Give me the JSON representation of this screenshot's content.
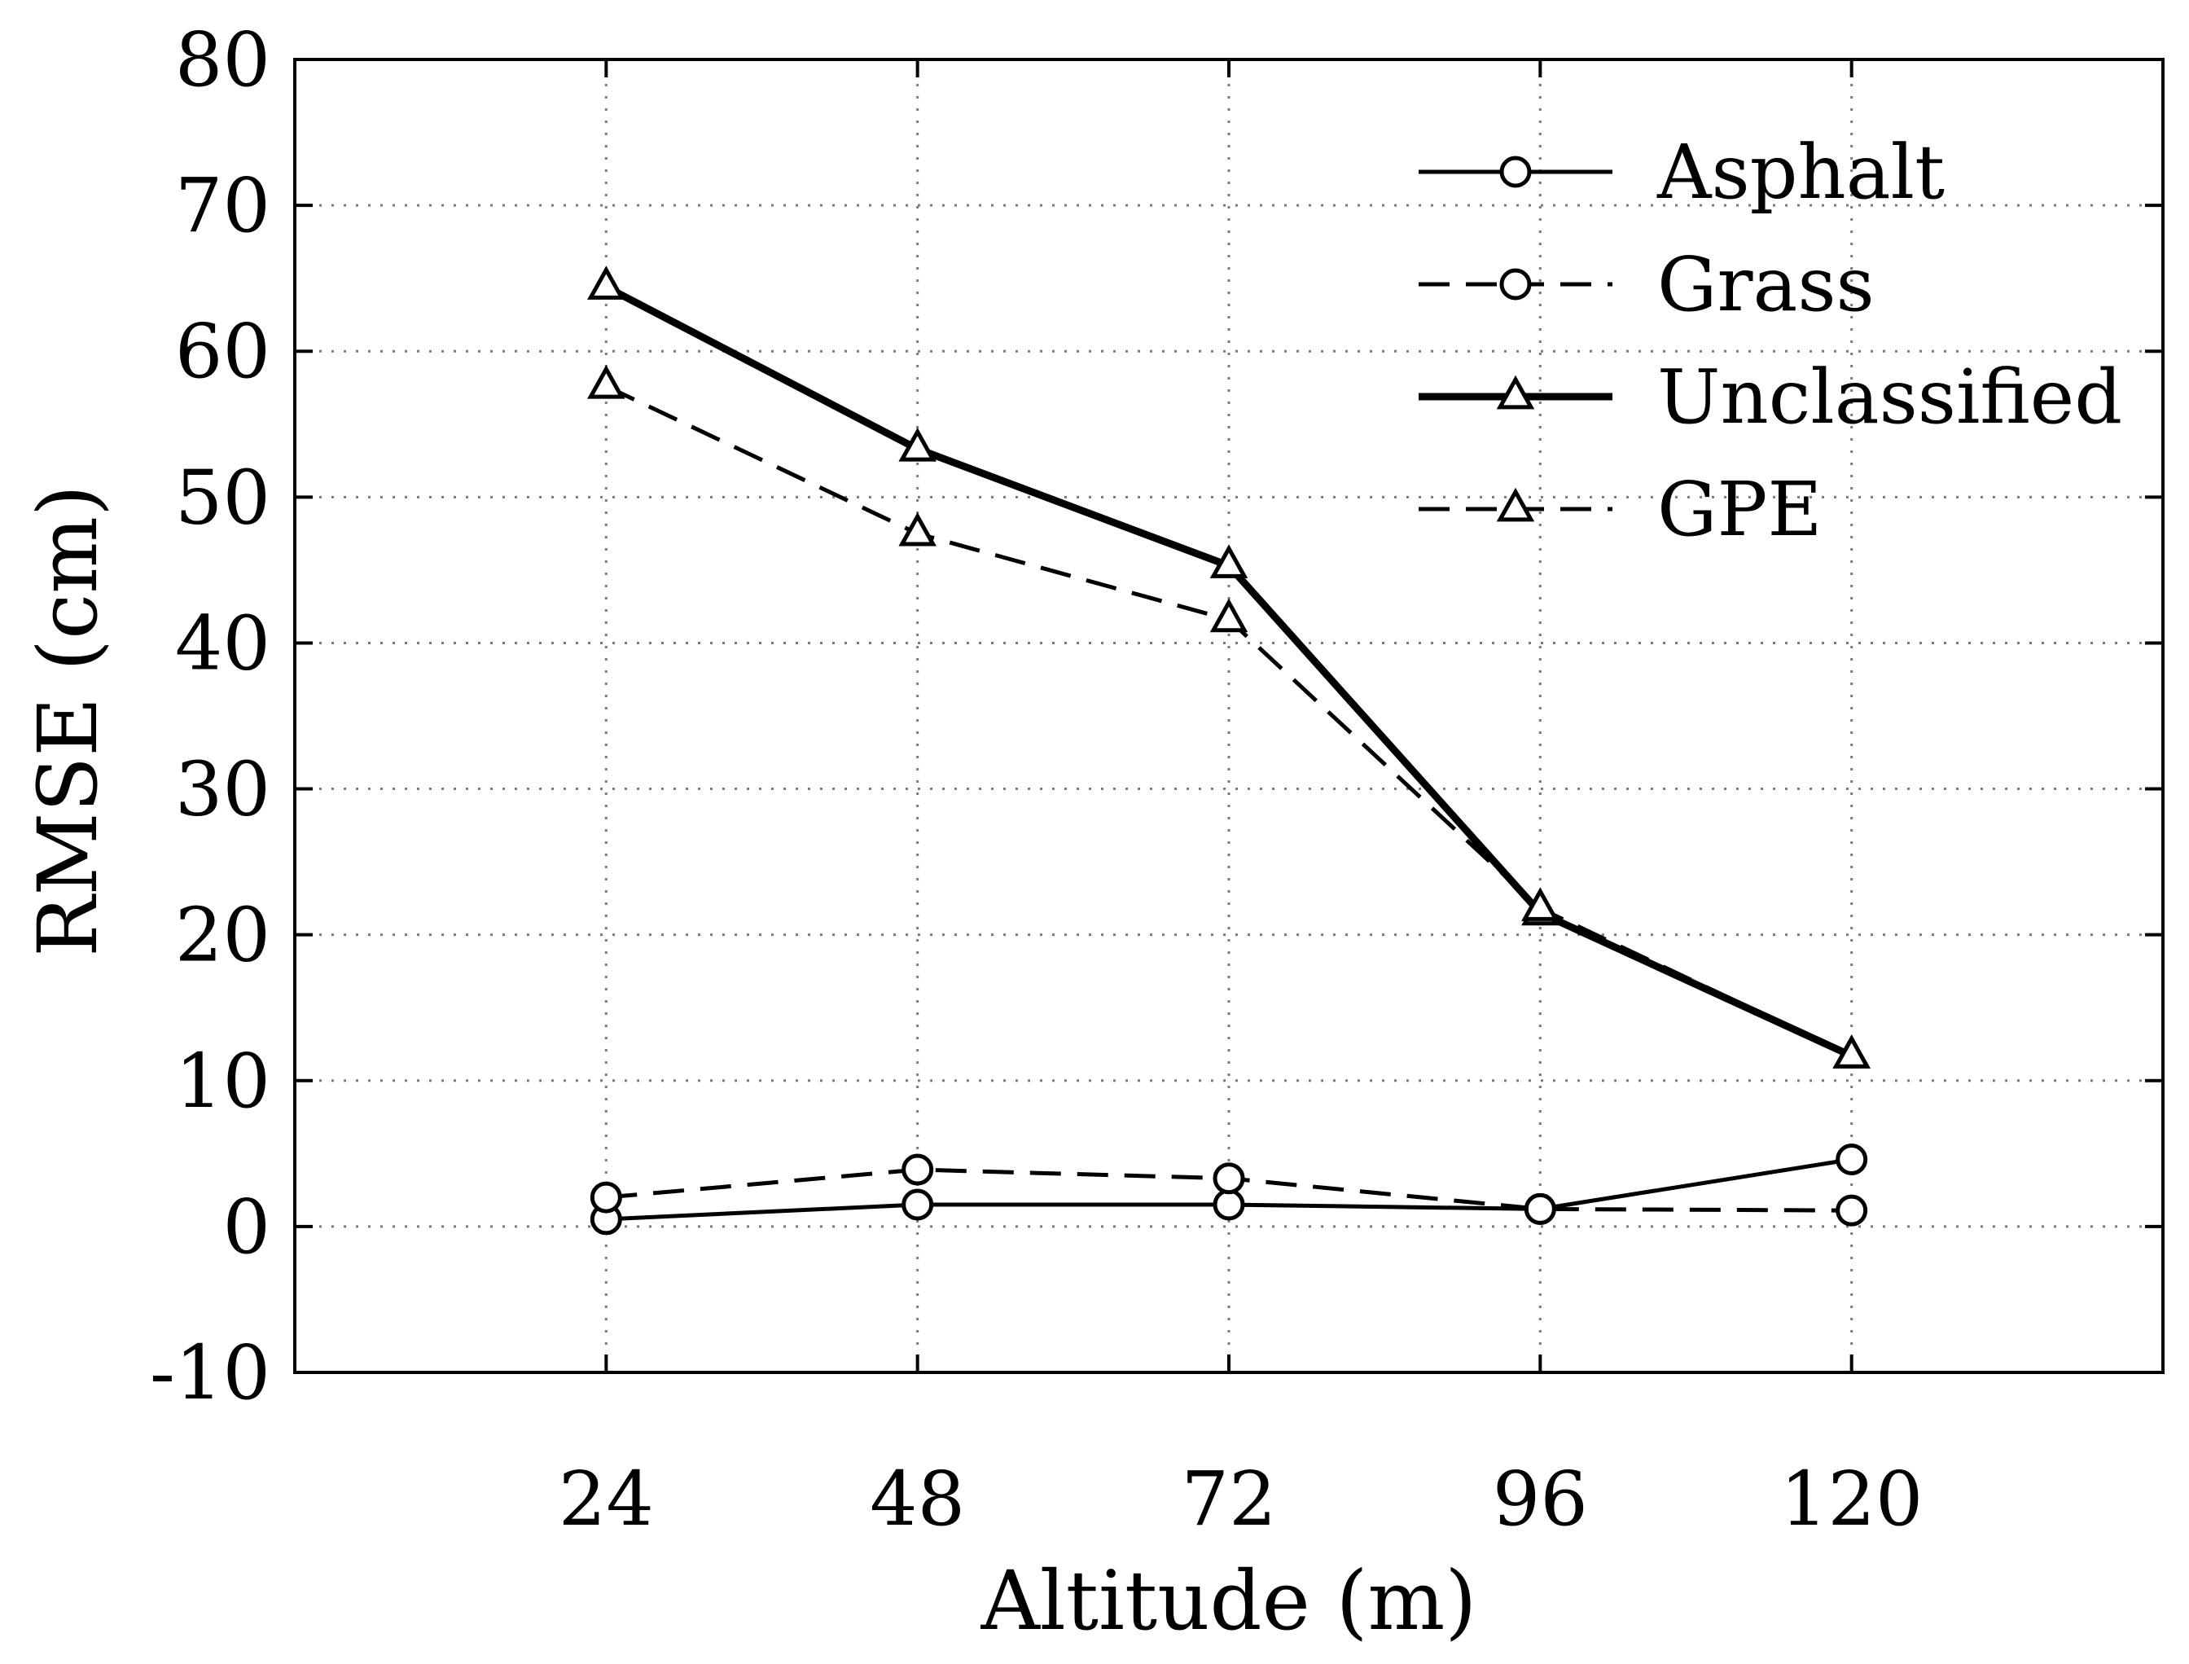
{
  "chart_data": {
    "type": "line",
    "title": "",
    "xlabel": "Altitude (m)",
    "ylabel": "RMSE (cm)",
    "categories": [
      "24",
      "48",
      "72",
      "96",
      "120"
    ],
    "x": [
      24,
      48,
      72,
      96,
      120
    ],
    "xlim": [
      0,
      144
    ],
    "ylim": [
      -10,
      80
    ],
    "yticks": [
      -10,
      0,
      10,
      20,
      30,
      40,
      50,
      60,
      70,
      80
    ],
    "grid": true,
    "legend_position": "top-right",
    "series": [
      {
        "name": "Asphalt",
        "values": [
          0.5,
          1.5,
          1.5,
          1.2,
          4.6
        ],
        "line": "solid",
        "marker": "circle",
        "width": "normal"
      },
      {
        "name": "Grass",
        "values": [
          2.0,
          3.9,
          3.3,
          1.2,
          1.1
        ],
        "line": "dashed",
        "marker": "circle",
        "width": "normal"
      },
      {
        "name": "Unclassified",
        "values": [
          64.4,
          53.3,
          45.3,
          21.5,
          11.7
        ],
        "line": "solid",
        "marker": "triangle",
        "width": "bold"
      },
      {
        "name": "GPE",
        "values": [
          57.6,
          47.5,
          41.6,
          21.8,
          11.7
        ],
        "line": "dashed",
        "marker": "triangle",
        "width": "normal"
      }
    ]
  },
  "colors": {
    "ink": "#000000",
    "grid": "#7a7a7a",
    "background": "#ffffff"
  }
}
